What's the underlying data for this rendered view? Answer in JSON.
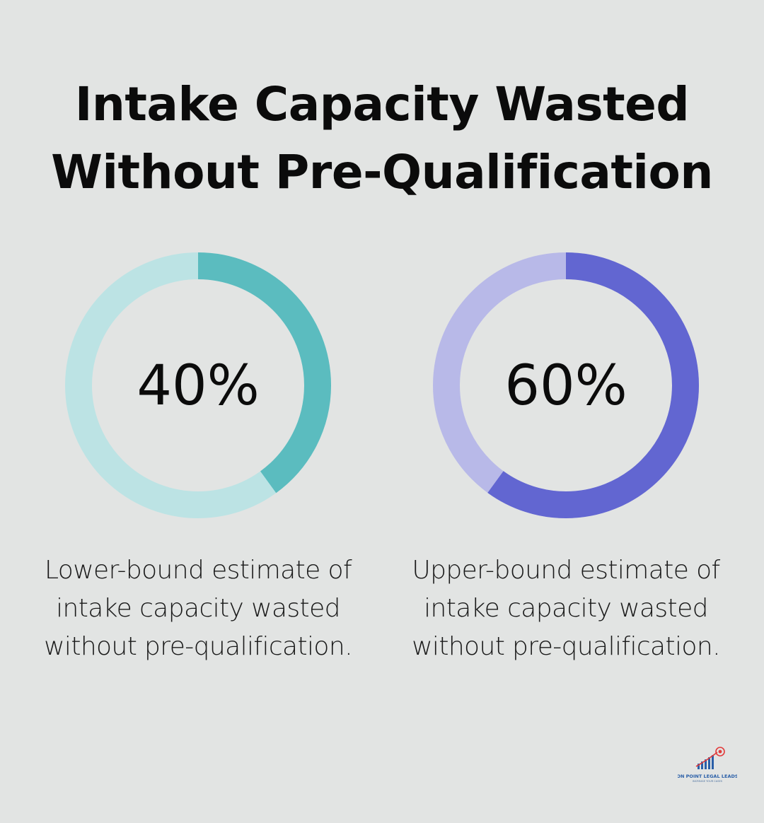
{
  "title": {
    "line1": "Intake Capacity Wasted",
    "line2": "Without Pre-Qualification"
  },
  "chart_data": [
    {
      "type": "donut",
      "value": 40,
      "max": 100,
      "label": "40%",
      "description": "Lower-bound estimate of intake capacity wasted without pre-qualification.",
      "colors": {
        "filled": "#5bbcbf",
        "track": "#bce3e4"
      }
    },
    {
      "type": "donut",
      "value": 60,
      "max": 100,
      "label": "60%",
      "description": "Upper-bound estimate of intake capacity wasted without pre-qualification.",
      "colors": {
        "filled": "#6266d1",
        "track": "#b8b9e8"
      }
    }
  ],
  "logo": {
    "name": "ON POINT LEGAL LEADS",
    "tagline": "INCREASE YOUR CASES",
    "colors": {
      "primary": "#2a5fa8",
      "accent": "#e23b3b"
    }
  }
}
